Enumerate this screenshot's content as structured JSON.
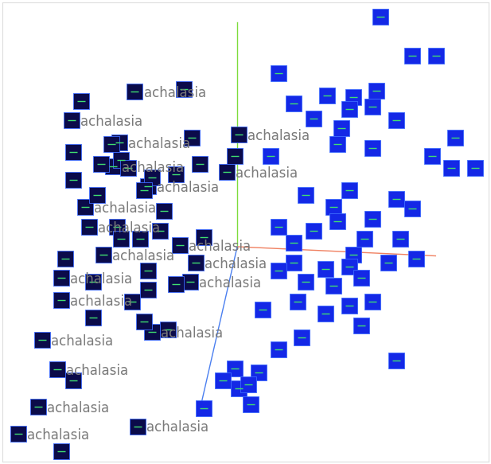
{
  "chart_data": {
    "type": "scatter",
    "xlim": [
      0,
      617
    ],
    "ylim": [
      0,
      583
    ],
    "tick_labels": false,
    "grid": false,
    "series": [
      {
        "color": "#0b0b4a",
        "marker": "square",
        "x": [
          168,
          88,
          148,
          300,
          140,
          285,
          185,
          105,
          110,
          225,
          128,
          245,
          238,
          75,
          75,
          190,
          50,
          70,
          45,
          20,
          172,
          230,
          100,
          138,
          240,
          150,
          125,
          160,
          220,
          250,
          295,
          190,
          90,
          90,
          120,
          180,
          205,
          145,
          200,
          175,
          255,
          80,
          150,
          185,
          115,
          220,
          185,
          115,
          180,
          210,
          90,
          75,
          165
        ],
        "values": [
          470,
          433,
          405,
          415,
          375,
          368,
          350,
          323,
          298,
          275,
          263,
          253,
          228,
          233,
          205,
          165,
          155,
          117,
          70,
          35,
          45,
          473,
          458,
          403,
          411,
          383,
          378,
          373,
          365,
          378,
          388,
          361,
          393,
          358,
          338,
          345,
          318,
          298,
          293,
          283,
          285,
          258,
          283,
          243,
          228,
          225,
          218,
          183,
          178,
          168,
          103,
          13,
          203
        ],
        "labels": [
          "achalasia",
          "achalasia",
          "achalasia",
          "achalasia",
          "achalasia",
          "achalasia",
          "achalasia",
          "achalasia",
          "achalasia",
          "achalasia",
          "achalasia",
          "achalasia",
          "achalasia",
          "achalasia",
          "achalasia",
          "achalasia",
          "achalasia",
          "achalasia",
          "achalasia",
          "achalasia",
          "achalasia",
          null,
          null,
          null,
          null,
          null,
          null,
          null,
          null,
          null,
          null,
          null,
          null,
          null,
          null,
          null,
          null,
          null,
          null,
          null,
          null,
          null,
          null,
          null,
          null,
          null,
          null,
          null,
          null,
          null,
          null,
          null,
          null
        ]
      },
      {
        "color": "#1428e6",
        "marker": "square",
        "x": [
          480,
          520,
          550,
          350,
          412,
          445,
          475,
          370,
          440,
          470,
          395,
          500,
          430,
          575,
          340,
          425,
          470,
          545,
          600,
          570,
          385,
          440,
          500,
          520,
          420,
          350,
          425,
          470,
          460,
          505,
          395,
          370,
          445,
          370,
          410,
          440,
          525,
          490,
          350,
          385,
          420,
          455,
          375,
          440,
          330,
          455,
          410,
          350,
          380,
          325,
          295,
          300,
          315,
          280,
          312,
          255,
          500,
          470
        ],
        "values": [
          565,
          515,
          515,
          493,
          465,
          463,
          471,
          455,
          448,
          451,
          435,
          433,
          423,
          411,
          388,
          403,
          398,
          388,
          373,
          373,
          338,
          345,
          333,
          321,
          323,
          298,
          305,
          308,
          283,
          283,
          293,
          278,
          263,
          253,
          245,
          248,
          258,
          253,
          243,
          228,
          223,
          233,
          203,
          198,
          193,
          173,
          188,
          143,
          158,
          113,
          118,
          93,
          73,
          103,
          98,
          68,
          128,
          203
        ]
      }
    ]
  }
}
